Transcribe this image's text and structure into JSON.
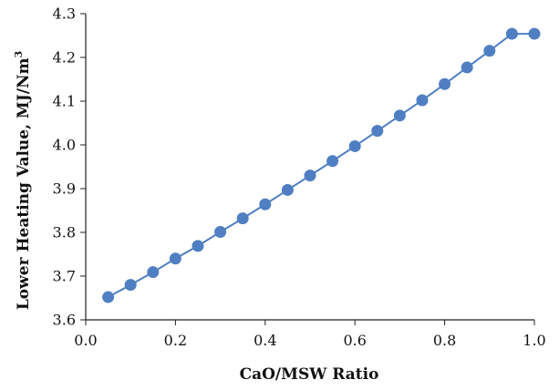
{
  "chart_data": {
    "type": "line",
    "title": "",
    "xlabel": "CaO/MSW Ratio",
    "ylabel_main": "Lower Heating Value, MJ/Nm",
    "ylabel_sup": "3",
    "xlim": [
      0.0,
      1.0
    ],
    "ylim": [
      3.6,
      4.3
    ],
    "x_ticks": [
      0.0,
      0.2,
      0.4,
      0.6,
      0.8,
      1.0
    ],
    "x_tick_labels": [
      "0.0",
      "0.2",
      "0.4",
      "0.6",
      "0.8",
      "1.0"
    ],
    "y_ticks": [
      3.6,
      3.7,
      3.8,
      3.9,
      4.0,
      4.1,
      4.2,
      4.3
    ],
    "y_tick_labels": [
      "3.6",
      "3.7",
      "3.8",
      "3.9",
      "4.0",
      "4.1",
      "4.2",
      "4.3"
    ],
    "grid": false,
    "legend": "none",
    "series": [
      {
        "color": "#4f7fc2",
        "x": [
          0.05,
          0.1,
          0.15,
          0.2,
          0.25,
          0.3,
          0.35,
          0.4,
          0.45,
          0.5,
          0.55,
          0.6,
          0.65,
          0.7,
          0.75,
          0.8,
          0.85,
          0.9,
          0.95,
          1.0
        ],
        "y": [
          3.652,
          3.68,
          3.709,
          3.74,
          3.769,
          3.801,
          3.832,
          3.864,
          3.897,
          3.93,
          3.963,
          3.997,
          4.032,
          4.067,
          4.102,
          4.139,
          4.177,
          4.215,
          4.254,
          4.254
        ]
      }
    ]
  }
}
